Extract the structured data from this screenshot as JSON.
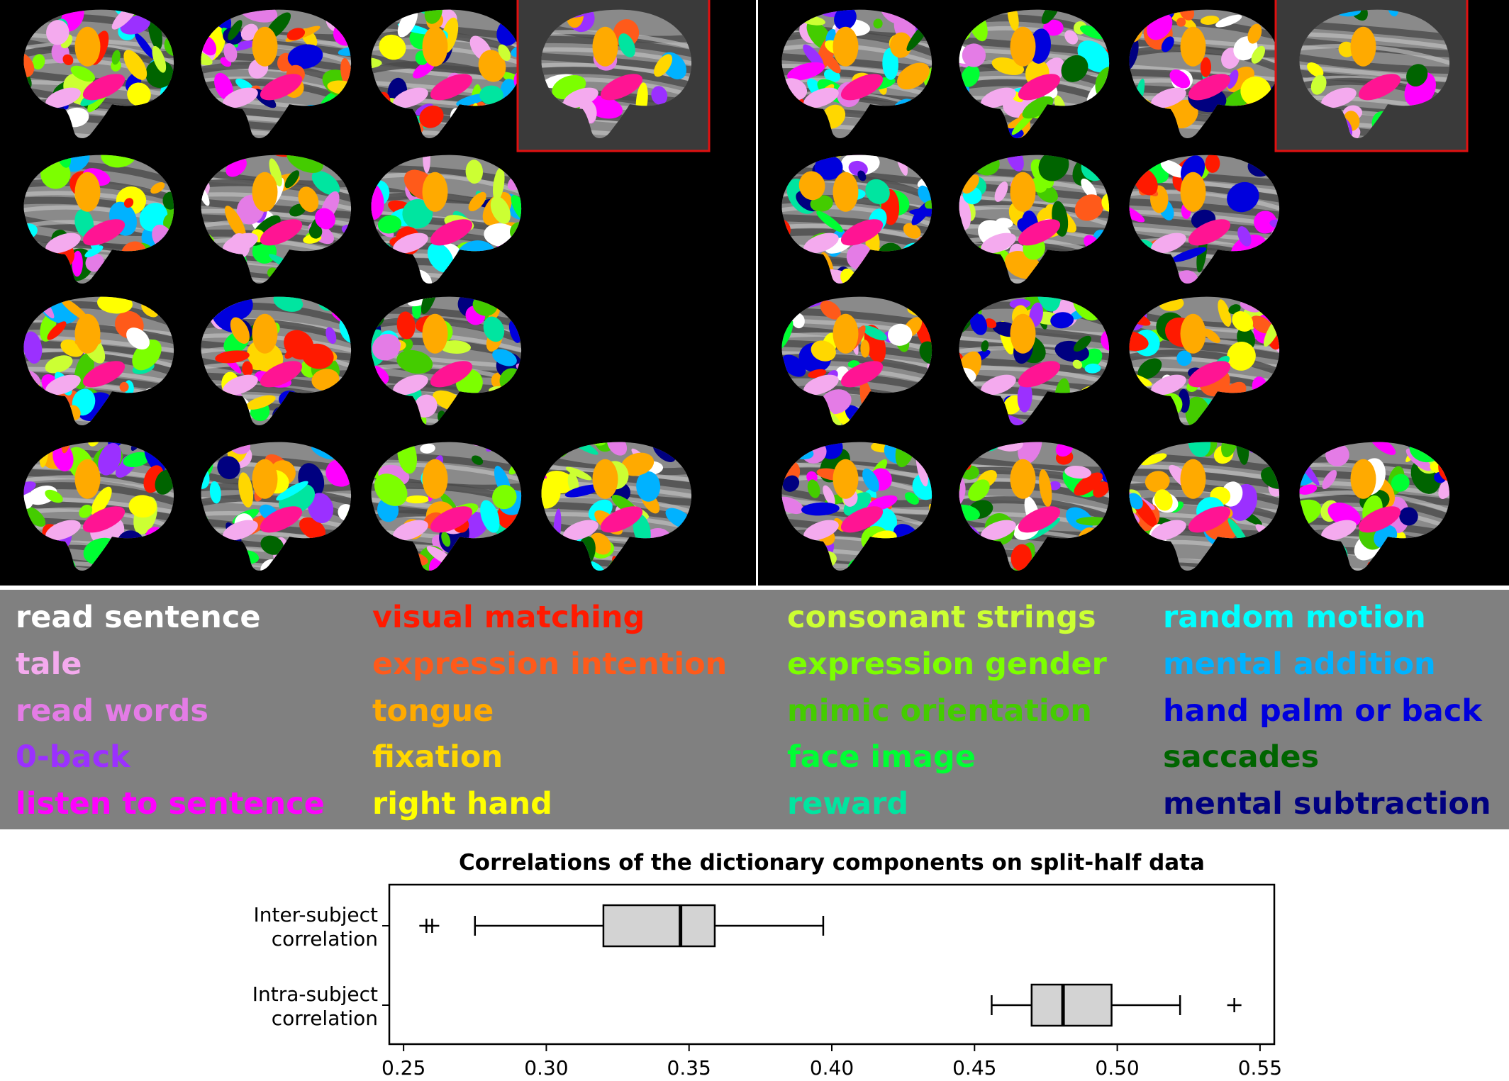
{
  "legend": {
    "items": [
      {
        "label": "read sentence",
        "color": "#ffffff"
      },
      {
        "label": "tale",
        "color": "#f4aaee"
      },
      {
        "label": "read words",
        "color": "#e47ce6"
      },
      {
        "label": "0-back",
        "color": "#9b30ff"
      },
      {
        "label": "listen to sentence",
        "color": "#ff00ff"
      },
      {
        "label": "visual matching",
        "color": "#ff1a00"
      },
      {
        "label": "expression intention",
        "color": "#ff5a1a"
      },
      {
        "label": "tongue",
        "color": "#ffaa00"
      },
      {
        "label": "fixation",
        "color": "#ffd700"
      },
      {
        "label": "right hand",
        "color": "#ffff00"
      },
      {
        "label": "consonant strings",
        "color": "#ccff33"
      },
      {
        "label": "expression gender",
        "color": "#7cff00"
      },
      {
        "label": "mimic orientation",
        "color": "#44cc00"
      },
      {
        "label": "face image",
        "color": "#00ff33"
      },
      {
        "label": "reward",
        "color": "#00e5a0"
      },
      {
        "label": "random motion",
        "color": "#00ffff"
      },
      {
        "label": "mental addition",
        "color": "#00b2ff"
      },
      {
        "label": "hand palm or back",
        "color": "#0000dd"
      },
      {
        "label": "saccades",
        "color": "#006400"
      },
      {
        "label": "mental subtraction",
        "color": "#000080"
      }
    ]
  },
  "chart_data": {
    "type": "boxplot",
    "orientation": "horizontal",
    "title": "Correlations of the dictionary components on split-half data",
    "xlim": [
      0.245,
      0.555
    ],
    "xticks": [
      "0.25",
      "0.30",
      "0.35",
      "0.40",
      "0.45",
      "0.50",
      "0.55"
    ],
    "xtick_values": [
      0.25,
      0.3,
      0.35,
      0.4,
      0.45,
      0.5,
      0.55
    ],
    "grid": false,
    "box_color": "#d3d3d3",
    "series": [
      {
        "category_lines": [
          "Inter-subject",
          "correlation"
        ],
        "whisker_low": 0.275,
        "q1": 0.32,
        "median": 0.347,
        "q3": 0.359,
        "whisker_high": 0.397,
        "outliers": [
          0.258,
          0.26
        ]
      },
      {
        "category_lines": [
          "Intra-subject",
          "correlation"
        ],
        "whisker_low": 0.456,
        "q1": 0.47,
        "median": 0.481,
        "q3": 0.498,
        "whisker_high": 0.522,
        "outliers": [
          0.541
        ]
      }
    ]
  }
}
